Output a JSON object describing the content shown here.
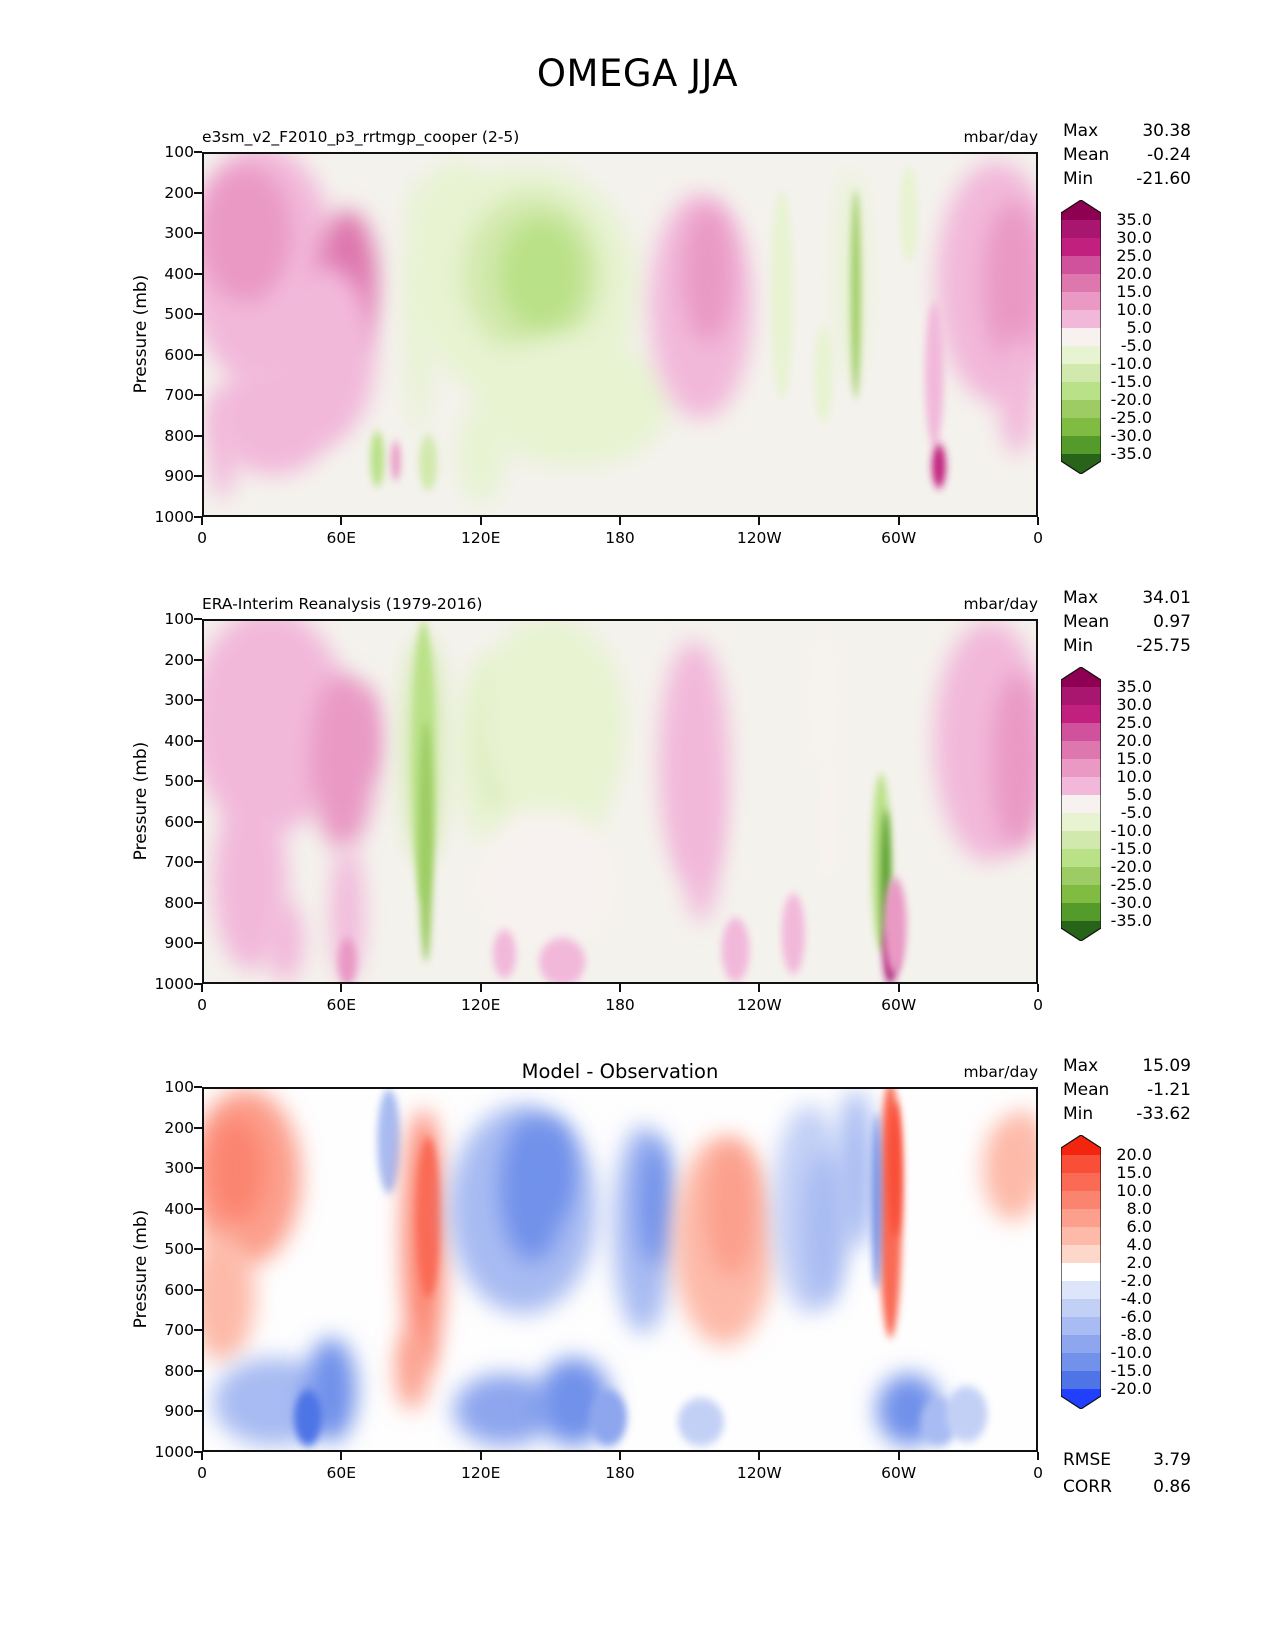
{
  "figure": {
    "title": "OMEGA JJA"
  },
  "chart_data": {
    "type": "contour",
    "variable": "OMEGA",
    "season": "JJA",
    "units": "mbar/day",
    "x_axis": {
      "ticks": [
        "0",
        "60E",
        "120E",
        "180",
        "120W",
        "60W",
        "0"
      ],
      "range_deg": [
        0,
        360
      ]
    },
    "y_axis": {
      "label": "Pressure (mb)",
      "ticks": [
        100,
        200,
        300,
        400,
        500,
        600,
        700,
        800,
        900,
        1000
      ],
      "range_mb": [
        100,
        1000
      ]
    },
    "blob_format": "[lon_deg_east, half_width_deg, pressure_mb, half_height_mb, value_mbar_per_day]",
    "panels": [
      {
        "title": "e3sm_v2_F2010_p3_rrtmgp_cooper (2-5)",
        "units": "mbar/day",
        "stats": [
          {
            "label": "Max",
            "value": "30.38"
          },
          {
            "label": "Mean",
            "value": "-0.24"
          },
          {
            "label": "Min",
            "value": "-21.60"
          }
        ],
        "colorbar": {
          "levels": [
            35,
            30,
            25,
            20,
            15,
            10,
            5,
            -5,
            -10,
            -15,
            -20,
            -25,
            -30,
            -35
          ],
          "labels": [
            "35.0",
            "30.0",
            "25.0",
            "20.0",
            "15.0",
            "10.0",
            "5.0",
            "-5.0",
            "-10.0",
            "-15.0",
            "-20.0",
            "-25.0",
            "-30.0",
            "-35.0"
          ],
          "colors": [
            "#8e0152",
            "#a81670",
            "#c2207f",
            "#d0529c",
            "#de77ae",
            "#e999c4",
            "#f2b8da",
            "#f7f2ef",
            "#e7f3d1",
            "#d2e9ad",
            "#b9e187",
            "#9dcc64",
            "#7fbc41",
            "#549b2c",
            "#276419"
          ]
        },
        "field": {
          "background": "#f4f2ed",
          "blobs": [
            [
              25,
              32,
              380,
              300,
              6
            ],
            [
              18,
              20,
              300,
              170,
              11
            ],
            [
              62,
              13,
              420,
              180,
              17
            ],
            [
              52,
              22,
              600,
              220,
              8
            ],
            [
              30,
              26,
              760,
              140,
              6
            ],
            [
              8,
              6,
              820,
              140,
              6
            ],
            [
              93,
              6,
              480,
              320,
              -7
            ],
            [
              110,
              18,
              260,
              140,
              -8
            ],
            [
              140,
              48,
              430,
              300,
              -7
            ],
            [
              142,
              30,
              400,
              200,
              -12
            ],
            [
              146,
              18,
              400,
              140,
              -17
            ],
            [
              160,
              42,
              720,
              160,
              -7
            ],
            [
              120,
              10,
              850,
              120,
              -7
            ],
            [
              75,
              3,
              860,
              70,
              -17
            ],
            [
              97,
              4,
              870,
              70,
              -12
            ],
            [
              83,
              2,
              865,
              50,
              12
            ],
            [
              215,
              22,
              480,
              280,
              7
            ],
            [
              218,
              11,
              400,
              170,
              11
            ],
            [
              250,
              5,
              450,
              260,
              -6
            ],
            [
              268,
              4,
              650,
              120,
              -6
            ],
            [
              280,
              6,
              400,
              260,
              -8
            ],
            [
              282,
              2,
              450,
              260,
              -21
            ],
            [
              305,
              4,
              250,
              120,
              -6
            ],
            [
              316,
              4,
              650,
              180,
              7
            ],
            [
              318,
              3,
              878,
              55,
              27
            ],
            [
              343,
              26,
              420,
              300,
              7
            ],
            [
              350,
              13,
              420,
              200,
              12
            ],
            [
              352,
              8,
              700,
              150,
              7
            ]
          ]
        }
      },
      {
        "title": "ERA-Interim Reanalysis (1979-2016)",
        "units": "mbar/day",
        "stats": [
          {
            "label": "Max",
            "value": "34.01"
          },
          {
            "label": "Mean",
            "value": "0.97"
          },
          {
            "label": "Min",
            "value": "-25.75"
          }
        ],
        "colorbar": {
          "levels": [
            35,
            30,
            25,
            20,
            15,
            10,
            5,
            -5,
            -10,
            -15,
            -20,
            -25,
            -30,
            -35
          ],
          "labels": [
            "35.0",
            "30.0",
            "25.0",
            "20.0",
            "15.0",
            "10.0",
            "5.0",
            "-5.0",
            "-10.0",
            "-15.0",
            "-20.0",
            "-25.0",
            "-30.0",
            "-35.0"
          ],
          "colors": [
            "#8e0152",
            "#a81670",
            "#c2207f",
            "#d0529c",
            "#de77ae",
            "#e999c4",
            "#f2b8da",
            "#f7f2ef",
            "#e7f3d1",
            "#d2e9ad",
            "#b9e187",
            "#9dcc64",
            "#7fbc41",
            "#549b2c",
            "#276419"
          ]
        },
        "field": {
          "background": "#f4f2ed",
          "blobs": [
            [
              28,
              34,
              350,
              280,
              6
            ],
            [
              60,
              14,
              450,
              220,
              12
            ],
            [
              68,
              8,
              380,
              120,
              14
            ],
            [
              20,
              16,
              750,
              220,
              7
            ],
            [
              62,
              7,
              830,
              170,
              9
            ],
            [
              95,
              9,
              420,
              280,
              -12
            ],
            [
              95,
              5,
              450,
              350,
              -17
            ],
            [
              96,
              3,
              650,
              300,
              -21
            ],
            [
              125,
              17,
              420,
              240,
              -9
            ],
            [
              128,
              8,
              400,
              160,
              -12
            ],
            [
              150,
              32,
              350,
              260,
              -6
            ],
            [
              165,
              12,
              420,
              220,
              -8
            ],
            [
              148,
              30,
              750,
              180,
              -4
            ],
            [
              212,
              15,
              450,
              300,
              6
            ],
            [
              215,
              8,
              650,
              200,
              7
            ],
            [
              268,
              6,
              300,
              180,
              -5
            ],
            [
              270,
              4,
              600,
              150,
              -4
            ],
            [
              293,
              4,
              700,
              220,
              -17
            ],
            [
              295,
              2,
              750,
              180,
              -33
            ],
            [
              297,
              3,
              935,
              70,
              34
            ],
            [
              299,
              5,
              860,
              120,
              14
            ],
            [
              255,
              5,
              880,
              100,
              6
            ],
            [
              230,
              6,
              920,
              80,
              6
            ],
            [
              340,
              24,
              400,
              300,
              7
            ],
            [
              352,
              11,
              450,
              220,
              11
            ],
            [
              155,
              10,
              950,
              60,
              8
            ],
            [
              130,
              5,
              930,
              60,
              6
            ],
            [
              35,
              8,
              900,
              100,
              8
            ],
            [
              62,
              4,
              950,
              60,
              12
            ]
          ]
        }
      },
      {
        "title": "Model - Observation",
        "units": "mbar/day",
        "stats": [
          {
            "label": "Max",
            "value": "15.09"
          },
          {
            "label": "Mean",
            "value": "-1.21"
          },
          {
            "label": "Min",
            "value": "-33.62"
          }
        ],
        "colorbar": {
          "levels": [
            20,
            15,
            10,
            8,
            6,
            4,
            2,
            -2,
            -4,
            -6,
            -8,
            -10,
            -15,
            -20
          ],
          "labels": [
            "20.0",
            "15.0",
            "10.0",
            "8.0",
            "6.0",
            "4.0",
            "2.0",
            "-2.0",
            "-4.0",
            "-6.0",
            "-8.0",
            "-10.0",
            "-15.0",
            "-20.0"
          ],
          "colors": [
            "#f3250f",
            "#f94e38",
            "#fa6a54",
            "#fb8470",
            "#fc9f8c",
            "#fdbaa9",
            "#fed7cb",
            "#ffffff",
            "#dde5fa",
            "#c3d0f6",
            "#a8bbf2",
            "#8da6ee",
            "#7191ea",
            "#4e74e6",
            "#203fff"
          ]
        },
        "field": {
          "background": "#fefefe",
          "blobs": [
            [
              18,
              24,
              320,
              220,
              6
            ],
            [
              14,
              12,
              300,
              130,
              9
            ],
            [
              8,
              14,
              620,
              160,
              4
            ],
            [
              80,
              5,
              230,
              130,
              -7
            ],
            [
              95,
              9,
              480,
              330,
              9
            ],
            [
              97,
              5,
              420,
              200,
              14
            ],
            [
              138,
              32,
              400,
              260,
              -7
            ],
            [
              142,
              14,
              350,
              180,
              -12
            ],
            [
              150,
              10,
              300,
              120,
              -15
            ],
            [
              190,
              13,
              450,
              260,
              -7
            ],
            [
              195,
              7,
              380,
              160,
              -11
            ],
            [
              225,
              22,
              480,
              260,
              5
            ],
            [
              228,
              11,
              400,
              170,
              7
            ],
            [
              262,
              16,
              400,
              260,
              -5
            ],
            [
              268,
              9,
              450,
              190,
              -8
            ],
            [
              282,
              8,
              300,
              200,
              -7
            ],
            [
              297,
              5,
              400,
              320,
              10
            ],
            [
              299,
              3,
              300,
              170,
              15
            ],
            [
              291,
              2,
              380,
              220,
              -11
            ],
            [
              350,
              13,
              300,
              130,
              5
            ],
            [
              355,
              6,
              250,
              100,
              5
            ],
            [
              30,
              26,
              880,
              110,
              -7
            ],
            [
              55,
              11,
              850,
              130,
              -12
            ],
            [
              45,
              6,
              920,
              70,
              -16
            ],
            [
              90,
              7,
              800,
              100,
              7
            ],
            [
              130,
              22,
              900,
              90,
              -9
            ],
            [
              160,
              16,
              880,
              110,
              -13
            ],
            [
              175,
              8,
              920,
              70,
              -9
            ],
            [
              215,
              10,
              930,
              60,
              -5
            ],
            [
              305,
              14,
              900,
              90,
              -11
            ],
            [
              318,
              8,
              930,
              60,
              -7
            ],
            [
              330,
              9,
              910,
              70,
              -5
            ]
          ]
        }
      }
    ],
    "footer_stats": [
      {
        "label": "RMSE",
        "value": "3.79"
      },
      {
        "label": "CORR",
        "value": "0.86"
      }
    ]
  }
}
